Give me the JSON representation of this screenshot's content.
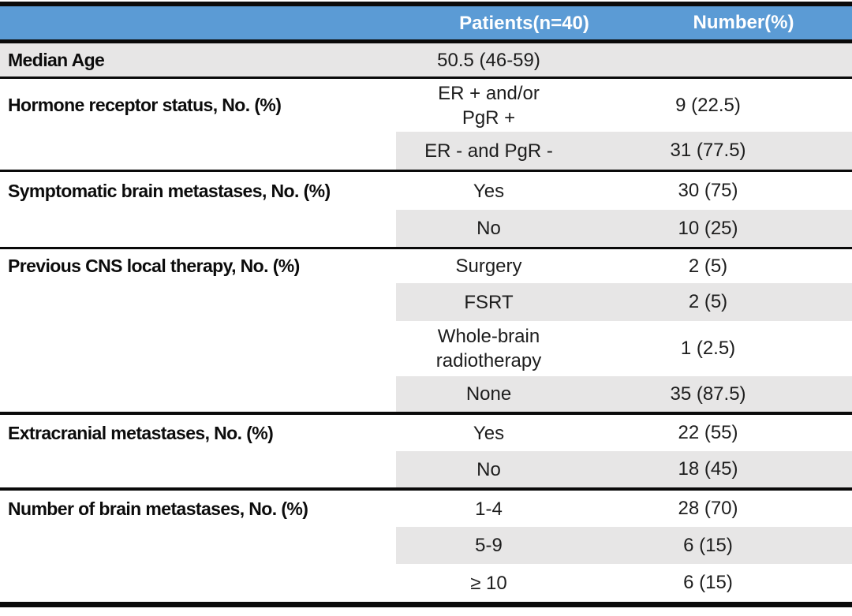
{
  "colors": {
    "header_bg": "#5B9BD5",
    "header_text": "#FFFFFF",
    "row_shade": "#E7E6E6",
    "rule": "#0A0A0A"
  },
  "header": {
    "patients": "Patients(n=40)",
    "number": "Number(%)"
  },
  "rows": [
    {
      "label": "Median Age",
      "value": "50.5 (46-59)",
      "number": ""
    },
    {
      "label": "Hormone receptor status, No. (%)",
      "value": "ER + and/or\nPgR +",
      "number": "9 (22.5)"
    },
    {
      "label": "",
      "value": "ER - and PgR -",
      "number": "31 (77.5)"
    },
    {
      "label": "Symptomatic brain metastases, No. (%)",
      "value": "Yes",
      "number": "30 (75)"
    },
    {
      "label": "",
      "value": "No",
      "number": "10 (25)"
    },
    {
      "label": "Previous CNS local therapy, No. (%)",
      "value": "Surgery",
      "number": "2 (5)"
    },
    {
      "label": "",
      "value": "FSRT",
      "number": "2 (5)"
    },
    {
      "label": "",
      "value": "Whole-brain\nradiotherapy",
      "number": "1 (2.5)"
    },
    {
      "label": "",
      "value": "None",
      "number": "35 (87.5)"
    },
    {
      "label": "Extracranial metastases, No. (%)",
      "value": "Yes",
      "number": "22 (55)"
    },
    {
      "label": "",
      "value": "No",
      "number": "18 (45)"
    },
    {
      "label": "Number of brain metastases, No. (%)",
      "value": "1-4",
      "number": "28 (70)"
    },
    {
      "label": "",
      "value": "5-9",
      "number": "6 (15)"
    },
    {
      "label": "",
      "value": "≥ 10",
      "number": "6 (15)"
    }
  ]
}
